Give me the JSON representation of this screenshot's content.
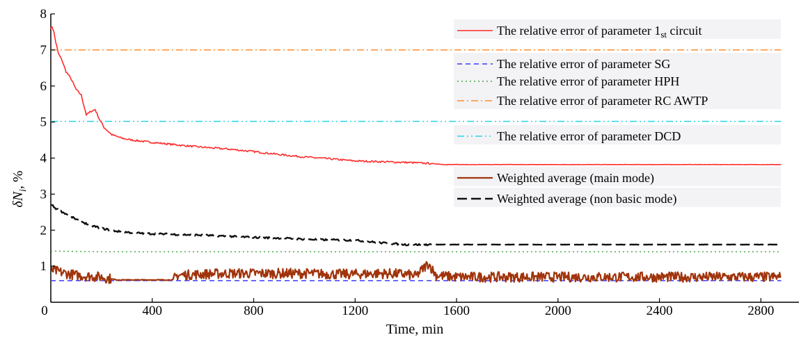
{
  "chart_data": {
    "type": "line",
    "xlabel": "Time, min",
    "ylabel": {
      "main": "δN",
      "sub": "i",
      "suffix": ", %"
    },
    "xlim": [
      0,
      2950
    ],
    "ylim": [
      0,
      8
    ],
    "xticks": [
      0,
      400,
      800,
      1200,
      1600,
      2000,
      2400,
      2800
    ],
    "xtick_labels": [
      "0",
      "400",
      "800",
      "1200",
      "1600",
      "2000",
      "2400",
      "2800"
    ],
    "yticks": [
      1,
      2,
      3,
      4,
      5,
      6,
      7,
      8
    ],
    "ytick_labels": [
      "1",
      "2",
      "3",
      "4",
      "5",
      "6",
      "7",
      "8"
    ],
    "grid": false,
    "legend_placement": "top-right (inside plot)",
    "series": [
      {
        "name": "The relative error of parameter 1st circuit",
        "label_main": "The relative error of parameter 1",
        "label_sub": "st",
        "label_tail": " circuit",
        "color": "#ff2a2a",
        "style": "solid",
        "x": [
          0,
          5,
          12,
          20,
          30,
          45,
          60,
          80,
          100,
          120,
          140,
          160,
          175,
          190,
          210,
          240,
          280,
          320,
          380,
          450,
          520,
          600,
          700,
          800,
          900,
          1000,
          1100,
          1200,
          1300,
          1400,
          1500,
          1550,
          1600,
          1800,
          2000,
          2200,
          2400,
          2600,
          2800,
          2880
        ],
        "y": [
          7.6,
          7.65,
          7.5,
          7.2,
          6.9,
          6.7,
          6.4,
          6.2,
          5.9,
          5.75,
          5.2,
          5.3,
          5.35,
          5.1,
          4.85,
          4.65,
          4.55,
          4.5,
          4.45,
          4.4,
          4.35,
          4.3,
          4.25,
          4.18,
          4.1,
          4.03,
          3.98,
          3.92,
          3.9,
          3.88,
          3.85,
          3.82,
          3.82,
          3.82,
          3.82,
          3.82,
          3.82,
          3.82,
          3.82,
          3.82
        ]
      },
      {
        "name": "The relative error of parameter SG",
        "color": "#3a3aff",
        "style": "dashed",
        "x": [
          0,
          2880
        ],
        "y": [
          0.6,
          0.6
        ]
      },
      {
        "name": "The relative error of parameter HPH",
        "color": "#4aa84a",
        "style": "dotted",
        "x": [
          0,
          200,
          2880
        ],
        "y": [
          1.42,
          1.4,
          1.4
        ]
      },
      {
        "name": "The relative error of parameter RC AWTP",
        "color": "#ff8c2a",
        "style": "dashdot",
        "x": [
          0,
          2880
        ],
        "y": [
          7.0,
          7.0
        ]
      },
      {
        "name": "The relative error of parameter DCD",
        "color": "#2ad4e8",
        "style": "dashdotdot",
        "x": [
          0,
          2880
        ],
        "y": [
          5.02,
          5.02
        ]
      },
      {
        "name": "Weighted average (main mode)",
        "color": "#a0340c",
        "style": "solid-thick-noisy",
        "x": [
          0,
          30,
          60,
          100,
          150,
          200,
          260,
          300,
          400,
          480,
          500,
          600,
          700,
          800,
          900,
          1000,
          1100,
          1200,
          1300,
          1400,
          1440,
          1470,
          1490,
          1500,
          1520,
          1560,
          1600,
          1800,
          2000,
          2200,
          2400,
          2600,
          2800,
          2880
        ],
        "y": [
          0.9,
          0.85,
          0.8,
          0.75,
          0.72,
          0.7,
          0.62,
          0.62,
          0.62,
          0.62,
          0.75,
          0.78,
          0.8,
          0.8,
          0.8,
          0.8,
          0.78,
          0.78,
          0.8,
          0.78,
          0.72,
          0.95,
          1.08,
          0.95,
          0.75,
          0.72,
          0.7,
          0.7,
          0.7,
          0.7,
          0.7,
          0.7,
          0.7,
          0.7
        ]
      },
      {
        "name": "Weighted average (non basic mode)",
        "color": "#111111",
        "style": "dashed-thick",
        "x": [
          0,
          20,
          60,
          100,
          150,
          200,
          260,
          320,
          400,
          500,
          600,
          700,
          800,
          900,
          1000,
          1100,
          1200,
          1300,
          1400,
          1500,
          1600,
          1800,
          2000,
          2200,
          2400,
          2600,
          2880
        ],
        "y": [
          2.72,
          2.6,
          2.45,
          2.3,
          2.15,
          2.05,
          1.97,
          1.93,
          1.9,
          1.88,
          1.86,
          1.83,
          1.8,
          1.78,
          1.75,
          1.73,
          1.72,
          1.65,
          1.6,
          1.6,
          1.6,
          1.6,
          1.6,
          1.6,
          1.6,
          1.6,
          1.6
        ]
      }
    ]
  }
}
